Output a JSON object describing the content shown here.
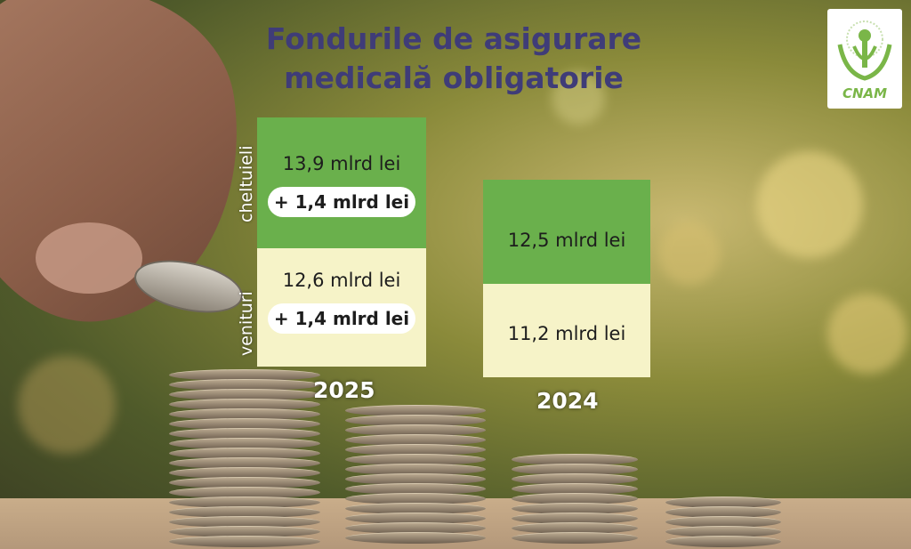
{
  "title_line1": "Fondurile de asigurare",
  "title_line2": "medicală obligatorie",
  "logo": {
    "text": "CNAM",
    "icon": "cnam-logo-icon",
    "color": "#7ab648"
  },
  "chart_data": {
    "type": "bar",
    "title": "Fondurile de asigurare medicală obligatorie",
    "categories": [
      "2025",
      "2024"
    ],
    "series": [
      {
        "name": "cheltuieli",
        "values": [
          13.9,
          12.5
        ],
        "color": "#6ab04c"
      },
      {
        "name": "venituri",
        "values": [
          12.6,
          11.2
        ],
        "color": "#f6f3c8"
      }
    ],
    "unit": "mlrd lei",
    "labels": {
      "y2025_expense": "13,9 mlrd lei",
      "y2025_expense_delta": "+ 1,4 mlrd lei",
      "y2025_income": "12,6 mlrd lei",
      "y2025_income_delta": "+ 1,4 mlrd lei",
      "y2024_expense": "12,5 mlrd lei",
      "y2024_income": "11,2 mlrd lei"
    },
    "axis_labels": {
      "expense": "cheltuieli",
      "income": "venituri"
    }
  }
}
